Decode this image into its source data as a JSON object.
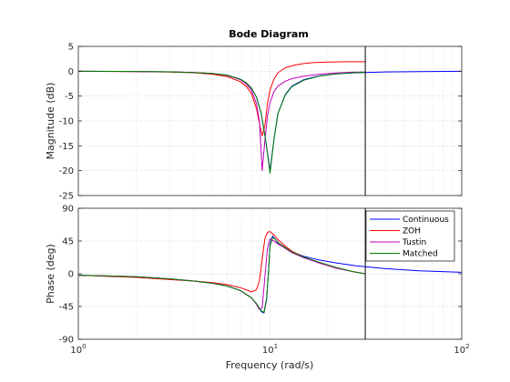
{
  "chart_data": [
    {
      "type": "line",
      "panel": "magnitude",
      "title": "Bode Diagram",
      "ylabel": "Magnitude (dB)",
      "xscale": "log",
      "xlim": [
        1,
        100
      ],
      "ylim": [
        -25,
        5
      ],
      "yticks": [
        "5",
        "0",
        "-5",
        "-10",
        "-15",
        "-20",
        "-25"
      ],
      "grid": true,
      "vertical_marker_x": 31.4,
      "series": [
        {
          "name": "Continuous",
          "color": "#0000ff",
          "x": [
            1,
            2,
            3,
            4,
            5,
            6,
            7,
            7.5,
            8,
            8.5,
            9,
            9.5,
            10,
            10.5,
            11,
            12,
            13,
            15,
            18,
            22,
            28,
            40,
            60,
            100
          ],
          "y": [
            -0.01,
            -0.05,
            -0.12,
            -0.25,
            -0.45,
            -0.8,
            -1.6,
            -2.3,
            -3.4,
            -5.2,
            -8.5,
            -14,
            -20,
            -13.5,
            -8.5,
            -4.7,
            -3.0,
            -1.7,
            -0.95,
            -0.55,
            -0.3,
            -0.14,
            -0.06,
            -0.02
          ]
        },
        {
          "name": "ZOH",
          "color": "#ff0000",
          "x": [
            1,
            2,
            3,
            4,
            5,
            6,
            7,
            7.5,
            8,
            8.5,
            8.8,
            9.1,
            9.4,
            9.7,
            10,
            10.5,
            11,
            12,
            13.5,
            15,
            17,
            20,
            25,
            31.4
          ],
          "y": [
            -0.01,
            -0.06,
            -0.15,
            -0.3,
            -0.6,
            -1.1,
            -2.1,
            -3.0,
            -4.5,
            -7.5,
            -10.5,
            -13,
            -11,
            -6.5,
            -3.8,
            -1.5,
            -0.3,
            0.7,
            1.25,
            1.55,
            1.75,
            1.85,
            1.9,
            1.9
          ]
        },
        {
          "name": "Tustin",
          "color": "#bf00bf",
          "x": [
            1,
            2,
            3,
            4,
            5,
            6,
            7,
            7.5,
            8,
            8.5,
            8.8,
            9.1,
            9.4,
            9.7,
            10,
            10.5,
            11,
            12,
            13,
            15,
            18,
            22,
            27,
            31.4
          ],
          "y": [
            -0.01,
            -0.05,
            -0.12,
            -0.25,
            -0.45,
            -0.85,
            -1.7,
            -2.5,
            -3.8,
            -6.5,
            -10,
            -20,
            -14,
            -9,
            -6.3,
            -4.0,
            -3.0,
            -2.0,
            -1.5,
            -1.0,
            -0.6,
            -0.35,
            -0.2,
            -0.15
          ]
        },
        {
          "name": "Matched",
          "color": "#008000",
          "x": [
            1,
            2,
            3,
            4,
            5,
            6,
            7,
            7.5,
            8,
            8.5,
            9,
            9.5,
            10,
            10.5,
            11,
            12,
            13,
            15,
            18,
            22,
            27,
            31.4
          ],
          "y": [
            -0.01,
            -0.05,
            -0.12,
            -0.25,
            -0.45,
            -0.8,
            -1.6,
            -2.3,
            -3.4,
            -5.2,
            -8.5,
            -14,
            -20.5,
            -13.5,
            -8.5,
            -4.8,
            -3.1,
            -1.8,
            -1.0,
            -0.55,
            -0.3,
            -0.2
          ]
        }
      ]
    },
    {
      "type": "line",
      "panel": "phase",
      "xlabel": "Frequency  (rad/s)",
      "ylabel": "Phase (deg)",
      "xscale": "log",
      "xlim": [
        1,
        100
      ],
      "ylim": [
        -90,
        90
      ],
      "yticks": [
        "90",
        "45",
        "0",
        "-45",
        "-90"
      ],
      "xticks": [
        {
          "base": "10",
          "exp": "0",
          "value": 1
        },
        {
          "base": "10",
          "exp": "1",
          "value": 10
        },
        {
          "base": "10",
          "exp": "2",
          "value": 100
        }
      ],
      "grid": true,
      "legend_position": "top-right",
      "vertical_marker_x": 31.4,
      "series": [
        {
          "name": "Continuous",
          "color": "#0000ff",
          "x": [
            1,
            2,
            3,
            4,
            5,
            6,
            7,
            8,
            8.5,
            9,
            9.3,
            9.6,
            9.8,
            10,
            10.3,
            10.7,
            11,
            12,
            13,
            15,
            18,
            22,
            28,
            40,
            60,
            100
          ],
          "y": [
            -2,
            -4,
            -7,
            -10,
            -13,
            -17,
            -23,
            -33,
            -41,
            -52,
            -54,
            -35,
            0,
            40,
            52,
            47,
            42,
            35,
            30,
            24,
            19,
            15,
            11,
            7,
            4,
            2
          ]
        },
        {
          "name": "ZOH",
          "color": "#ff0000",
          "x": [
            1,
            2,
            3,
            4,
            5,
            6,
            7,
            8,
            8.5,
            8.8,
            9.1,
            9.4,
            9.7,
            10,
            10.5,
            11,
            12,
            13,
            15,
            18,
            22,
            27,
            31.4
          ],
          "y": [
            -2,
            -5,
            -8,
            -10,
            -12,
            -15,
            -19,
            -25,
            -22,
            -10,
            20,
            48,
            57,
            58,
            53,
            47,
            38,
            31,
            23,
            15,
            8,
            3,
            0
          ]
        },
        {
          "name": "Tustin",
          "color": "#bf00bf",
          "x": [
            1,
            2,
            3,
            4,
            5,
            6,
            7,
            8,
            8.5,
            8.8,
            9.1,
            9.4,
            9.7,
            10,
            10.5,
            11,
            12,
            13,
            15,
            18,
            22,
            27,
            31.4
          ],
          "y": [
            -2,
            -4,
            -7,
            -10,
            -13,
            -17,
            -23,
            -33,
            -42,
            -49,
            -47,
            -5,
            35,
            48,
            45,
            41,
            35,
            29,
            22,
            15,
            8,
            3,
            0
          ]
        },
        {
          "name": "Matched",
          "color": "#008000",
          "x": [
            1,
            2,
            3,
            4,
            5,
            6,
            7,
            8,
            8.5,
            9,
            9.3,
            9.6,
            9.8,
            10,
            10.3,
            10.7,
            11,
            12,
            13,
            15,
            18,
            22,
            27,
            31.4
          ],
          "y": [
            -2,
            -4,
            -7,
            -10,
            -13,
            -17,
            -23,
            -33,
            -41,
            -51,
            -53,
            -33,
            0,
            38,
            50,
            47,
            43,
            36,
            30,
            23,
            16,
            9,
            3,
            0
          ]
        }
      ]
    }
  ]
}
